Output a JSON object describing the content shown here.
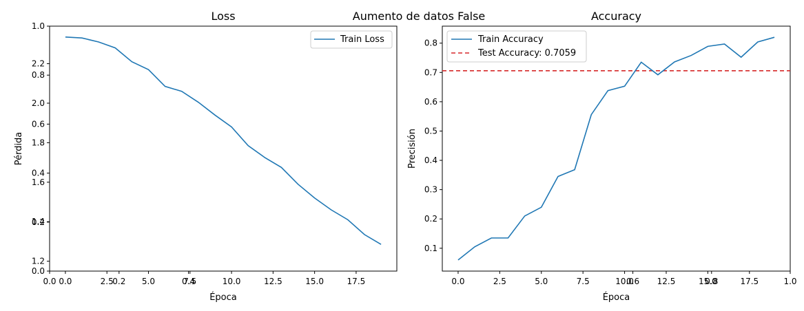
{
  "figure": {
    "suptitle": "Aumento de datos False"
  },
  "colors": {
    "train": "#1f77b4",
    "test": "#d62728",
    "legend_border": "#cccccc"
  },
  "chart_data": [
    {
      "type": "line",
      "title": "Loss",
      "xlabel": "Época",
      "ylabel": "Pérdida",
      "legend_position": "top-right",
      "grid": false,
      "x": [
        0,
        1,
        2,
        3,
        4,
        5,
        6,
        7,
        8,
        9,
        10,
        11,
        12,
        13,
        14,
        15,
        16,
        17,
        18,
        19
      ],
      "xlim": [
        -0.95,
        19.95
      ],
      "ylim": [
        1.15,
        2.39
      ],
      "yscale_right": "secondary-0-1",
      "series": [
        {
          "name": "Train Loss",
          "style": "solid",
          "values": [
            2.335,
            2.33,
            2.31,
            2.28,
            2.21,
            2.17,
            2.085,
            2.06,
            2.005,
            1.94,
            1.88,
            1.785,
            1.725,
            1.675,
            1.59,
            1.52,
            1.46,
            1.41,
            1.335,
            1.285
          ]
        }
      ],
      "overlay_axes_ticks": {
        "y_left_primary": [
          "1.2",
          "1.4",
          "1.6",
          "1.8",
          "2.0",
          "2.2"
        ],
        "y_left_secondary": [
          "0.0",
          "0.2",
          "0.4",
          "0.6",
          "0.8",
          "1.0"
        ],
        "x_primary": [
          "0.0",
          "2.5",
          "5.0",
          "7.5",
          "10.0",
          "12.5",
          "15.0",
          "17.5"
        ],
        "x_secondary": [
          "0.0",
          "0.2",
          "0.4"
        ]
      }
    },
    {
      "type": "line",
      "title": "Accuracy",
      "xlabel": "Época",
      "ylabel": "Precisión",
      "legend_position": "top-left",
      "grid": false,
      "x": [
        0,
        1,
        2,
        3,
        4,
        5,
        6,
        7,
        8,
        9,
        10,
        11,
        12,
        13,
        14,
        15,
        16,
        17,
        18,
        19
      ],
      "xlim": [
        -0.95,
        19.95
      ],
      "ylim": [
        0.022,
        0.858
      ],
      "series": [
        {
          "name": "Train Accuracy",
          "style": "solid",
          "values": [
            0.06,
            0.105,
            0.135,
            0.135,
            0.21,
            0.24,
            0.345,
            0.368,
            0.556,
            0.638,
            0.653,
            0.735,
            0.692,
            0.736,
            0.758,
            0.789,
            0.797,
            0.752,
            0.804,
            0.82
          ]
        },
        {
          "name": "Test Accuracy: 0.7059",
          "style": "dashed",
          "constant": 0.7059
        }
      ],
      "overlay_axes_ticks": {
        "y_primary": [
          "0.1",
          "0.2",
          "0.3",
          "0.4",
          "0.5",
          "0.6",
          "0.7",
          "0.8"
        ],
        "x_primary": [
          "0.0",
          "2.5",
          "5.0",
          "7.5",
          "10.0",
          "12.5",
          "15.0",
          "17.5"
        ],
        "x_secondary": [
          "0.6",
          "0.8",
          "1.0"
        ]
      }
    }
  ]
}
